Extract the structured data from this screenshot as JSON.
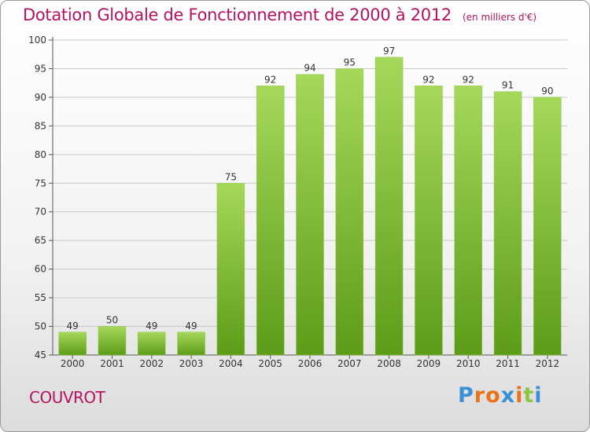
{
  "header": {
    "title": "Dotation Globale de Fonctionnement de 2000 à 2012",
    "unit_note": "(en milliers d'€)"
  },
  "commune": "COUVROT",
  "logo": {
    "text": "Proxiti",
    "colors": [
      "#3a8fd6",
      "#e8731c",
      "#e8731c",
      "#3a8fd6",
      "#e8731c",
      "#8cc63f",
      "#3a8fd6"
    ]
  },
  "colors": {
    "bar_light": "#a6d85a",
    "bar_dark": "#5d9c18",
    "title": "#b5135f",
    "grid": "#c8c8c8"
  },
  "chart_data": {
    "type": "bar",
    "categories": [
      "2000",
      "2001",
      "2002",
      "2003",
      "2004",
      "2005",
      "2006",
      "2007",
      "2008",
      "2009",
      "2010",
      "2011",
      "2012"
    ],
    "values": [
      49,
      50,
      49,
      49,
      75,
      92,
      94,
      95,
      97,
      92,
      92,
      91,
      90
    ],
    "ylim": [
      45,
      100
    ],
    "yticks": [
      45,
      50,
      55,
      60,
      65,
      70,
      75,
      80,
      85,
      90,
      95,
      100
    ],
    "grid": true
  }
}
